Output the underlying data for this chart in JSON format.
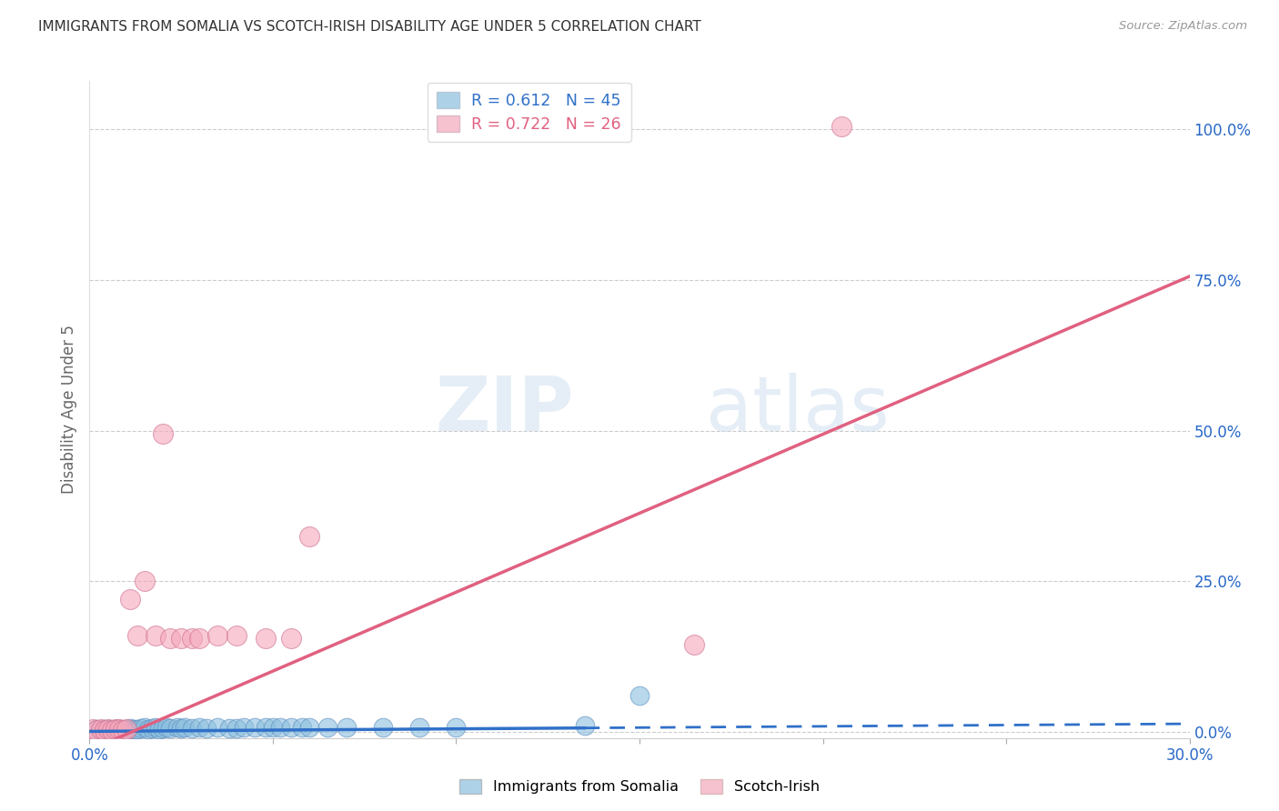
{
  "title": "IMMIGRANTS FROM SOMALIA VS SCOTCH-IRISH DISABILITY AGE UNDER 5 CORRELATION CHART",
  "source": "Source: ZipAtlas.com",
  "ylabel": "Disability Age Under 5",
  "xlim": [
    0.0,
    0.3
  ],
  "ylim": [
    -0.01,
    1.08
  ],
  "xticks": [
    0.0,
    0.05,
    0.1,
    0.15,
    0.2,
    0.25,
    0.3
  ],
  "xtick_labels": [
    "0.0%",
    "",
    "",
    "",
    "",
    "",
    "30.0%"
  ],
  "ytick_labels_right": [
    "0.0%",
    "25.0%",
    "50.0%",
    "75.0%",
    "100.0%"
  ],
  "ytick_positions_right": [
    0.0,
    0.25,
    0.5,
    0.75,
    1.0
  ],
  "somalia_R": "0.612",
  "somalia_N": "45",
  "scotch_R": "0.722",
  "scotch_N": "26",
  "somalia_color": "#8bbfdf",
  "scotch_color": "#f5a8bc",
  "somalia_line_color": "#3070c8",
  "scotch_line_color": "#e06080",
  "somalia_line_solid_end": 0.135,
  "somalia_line_dash_start": 0.135,
  "somalia_line_m": 0.042,
  "somalia_line_b": 0.001,
  "scotch_line_m": 2.62,
  "scotch_line_b": -0.03,
  "somalia_x": [
    0.002,
    0.003,
    0.004,
    0.005,
    0.006,
    0.007,
    0.008,
    0.009,
    0.01,
    0.011,
    0.012,
    0.013,
    0.014,
    0.015,
    0.016,
    0.017,
    0.018,
    0.019,
    0.02,
    0.021,
    0.022,
    0.024,
    0.025,
    0.026,
    0.028,
    0.03,
    0.032,
    0.035,
    0.038,
    0.04,
    0.042,
    0.045,
    0.048,
    0.05,
    0.052,
    0.055,
    0.058,
    0.06,
    0.065,
    0.07,
    0.08,
    0.09,
    0.1,
    0.135,
    0.15
  ],
  "somalia_y": [
    0.004,
    0.003,
    0.005,
    0.004,
    0.003,
    0.005,
    0.004,
    0.003,
    0.005,
    0.006,
    0.004,
    0.005,
    0.006,
    0.007,
    0.005,
    0.006,
    0.007,
    0.005,
    0.006,
    0.007,
    0.006,
    0.007,
    0.006,
    0.007,
    0.006,
    0.007,
    0.006,
    0.007,
    0.006,
    0.006,
    0.007,
    0.007,
    0.007,
    0.007,
    0.007,
    0.007,
    0.007,
    0.007,
    0.007,
    0.007,
    0.007,
    0.008,
    0.008,
    0.01,
    0.06
  ],
  "scotch_x": [
    0.001,
    0.002,
    0.003,
    0.004,
    0.005,
    0.006,
    0.007,
    0.008,
    0.009,
    0.01,
    0.011,
    0.013,
    0.015,
    0.018,
    0.02,
    0.022,
    0.025,
    0.028,
    0.03,
    0.035,
    0.04,
    0.048,
    0.055,
    0.06,
    0.165,
    0.205
  ],
  "scotch_y": [
    0.004,
    0.003,
    0.005,
    0.003,
    0.004,
    0.003,
    0.004,
    0.005,
    0.003,
    0.004,
    0.22,
    0.16,
    0.25,
    0.16,
    0.495,
    0.155,
    0.155,
    0.155,
    0.155,
    0.16,
    0.16,
    0.155,
    0.155,
    0.325,
    0.145,
    1.005
  ],
  "watermark_zip": "ZIP",
  "watermark_atlas": "atlas",
  "grid_color": "#cccccc",
  "background_color": "#ffffff"
}
